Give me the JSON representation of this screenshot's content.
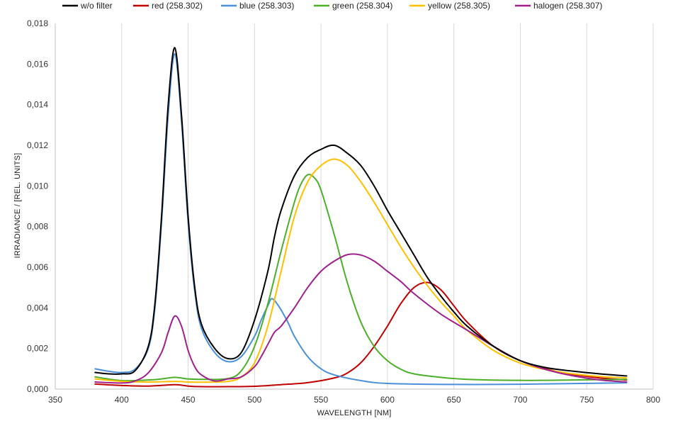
{
  "chart_data": {
    "type": "line",
    "title": "",
    "xlabel": "WAVELENGTH [NM]",
    "ylabel": "IRRADIANCE / [REL. UNITS]",
    "xlim": [
      350,
      800
    ],
    "ylim": [
      0,
      0.018
    ],
    "x_ticks": [
      350,
      400,
      450,
      500,
      550,
      600,
      650,
      700,
      750,
      800
    ],
    "x_tick_labels": [
      "350",
      "400",
      "450",
      "500",
      "550",
      "600",
      "650",
      "700",
      "750",
      "800"
    ],
    "y_ticks": [
      0,
      0.002,
      0.004,
      0.006,
      0.008,
      0.01,
      0.012,
      0.014,
      0.016,
      0.018
    ],
    "y_tick_labels": [
      "0,000",
      "0,002",
      "0,004",
      "0,006",
      "0,008",
      "0,010",
      "0,012",
      "0,014",
      "0,016",
      "0,018"
    ],
    "grid": "vertical",
    "legend_position": "top",
    "series": [
      {
        "name": "w/o filter",
        "color": "#000000",
        "x": [
          380,
          390,
          400,
          410,
          420,
          425,
          430,
          435,
          440,
          445,
          450,
          455,
          460,
          470,
          480,
          490,
          500,
          510,
          515,
          520,
          530,
          540,
          550,
          560,
          570,
          580,
          590,
          600,
          610,
          620,
          630,
          640,
          650,
          660,
          680,
          700,
          720,
          740,
          760,
          780
        ],
        "y": [
          0.00082,
          0.00075,
          0.00075,
          0.0009,
          0.0021,
          0.0042,
          0.0085,
          0.014,
          0.0168,
          0.0135,
          0.0085,
          0.005,
          0.0032,
          0.002,
          0.0015,
          0.0018,
          0.0034,
          0.0058,
          0.0075,
          0.0088,
          0.0105,
          0.0114,
          0.0118,
          0.012,
          0.0116,
          0.011,
          0.01,
          0.0088,
          0.0077,
          0.0066,
          0.0055,
          0.0046,
          0.0038,
          0.0031,
          0.0021,
          0.0014,
          0.00105,
          0.00088,
          0.00075,
          0.00065
        ]
      },
      {
        "name": "red (258.302)",
        "color": "#c00000",
        "x": [
          380,
          400,
          420,
          440,
          450,
          460,
          480,
          500,
          520,
          540,
          560,
          570,
          580,
          590,
          600,
          610,
          620,
          630,
          640,
          650,
          660,
          680,
          700,
          720,
          740,
          760,
          780
        ],
        "y": [
          0.00025,
          0.00018,
          0.00015,
          0.00022,
          0.00015,
          0.00012,
          0.00012,
          0.00014,
          0.00022,
          0.00032,
          0.00055,
          0.0008,
          0.0013,
          0.0021,
          0.0031,
          0.0042,
          0.005,
          0.00525,
          0.0049,
          0.0041,
          0.0033,
          0.0021,
          0.0014,
          0.00098,
          0.00072,
          0.00055,
          0.00045
        ]
      },
      {
        "name": "blue (258.303)",
        "color": "#4a90d9",
        "x": [
          380,
          390,
          400,
          410,
          420,
          425,
          430,
          435,
          440,
          445,
          450,
          455,
          460,
          470,
          480,
          490,
          500,
          505,
          510,
          513,
          518,
          525,
          530,
          540,
          550,
          560,
          580,
          600,
          650,
          700,
          780
        ],
        "y": [
          0.001,
          0.00088,
          0.00082,
          0.00098,
          0.002,
          0.004,
          0.0082,
          0.0135,
          0.0165,
          0.0132,
          0.0082,
          0.0048,
          0.003,
          0.0018,
          0.00135,
          0.0016,
          0.0026,
          0.0034,
          0.0041,
          0.00445,
          0.0041,
          0.0033,
          0.0026,
          0.0016,
          0.001,
          0.0007,
          0.00042,
          0.00028,
          0.00023,
          0.00024,
          0.00031
        ]
      },
      {
        "name": "green (258.304)",
        "color": "#4caf2a",
        "x": [
          380,
          400,
          420,
          430,
          440,
          450,
          460,
          480,
          490,
          500,
          510,
          520,
          530,
          535,
          540,
          545,
          550,
          560,
          570,
          580,
          590,
          600,
          610,
          620,
          640,
          660,
          700,
          740,
          780
        ],
        "y": [
          0.0006,
          0.00042,
          0.00045,
          0.0005,
          0.00058,
          0.0005,
          0.00048,
          0.00052,
          0.0009,
          0.0021,
          0.0042,
          0.0068,
          0.0092,
          0.0101,
          0.01055,
          0.0104,
          0.0098,
          0.0076,
          0.0052,
          0.0033,
          0.0021,
          0.0014,
          0.00098,
          0.00075,
          0.00058,
          0.00048,
          0.00043,
          0.00045,
          0.00048
        ]
      },
      {
        "name": "yellow (258.305)",
        "color": "#ffc000",
        "x": [
          380,
          400,
          420,
          440,
          450,
          460,
          480,
          490,
          500,
          510,
          520,
          530,
          540,
          550,
          560,
          570,
          580,
          590,
          600,
          610,
          620,
          630,
          640,
          650,
          660,
          680,
          700,
          720,
          740,
          760,
          780
        ],
        "y": [
          0.0005,
          0.00038,
          0.00035,
          0.00038,
          0.00035,
          0.00034,
          0.00038,
          0.0006,
          0.0013,
          0.0031,
          0.0058,
          0.0085,
          0.0102,
          0.011,
          0.01132,
          0.011,
          0.0102,
          0.0092,
          0.0081,
          0.007,
          0.006,
          0.0051,
          0.0043,
          0.0036,
          0.0029,
          0.0019,
          0.00128,
          0.00095,
          0.00075,
          0.00062,
          0.00055
        ]
      },
      {
        "name": "halogen (258.307)",
        "color": "#a0208e",
        "x": [
          380,
          400,
          410,
          420,
          430,
          435,
          440,
          445,
          450,
          455,
          460,
          470,
          480,
          490,
          500,
          505,
          510,
          515,
          520,
          530,
          540,
          550,
          560,
          570,
          580,
          590,
          600,
          610,
          620,
          640,
          660,
          680,
          700,
          720,
          740,
          760,
          780
        ],
        "y": [
          0.00035,
          0.0003,
          0.0004,
          0.0008,
          0.0018,
          0.0028,
          0.0036,
          0.0031,
          0.0019,
          0.0011,
          0.0007,
          0.0004,
          0.0005,
          0.0006,
          0.0011,
          0.0016,
          0.0022,
          0.0028,
          0.0031,
          0.004,
          0.005,
          0.0058,
          0.0063,
          0.00662,
          0.0066,
          0.0063,
          0.0058,
          0.0053,
          0.0047,
          0.0037,
          0.0029,
          0.0021,
          0.0014,
          0.00095,
          0.00065,
          0.00045,
          0.00035
        ]
      }
    ]
  }
}
